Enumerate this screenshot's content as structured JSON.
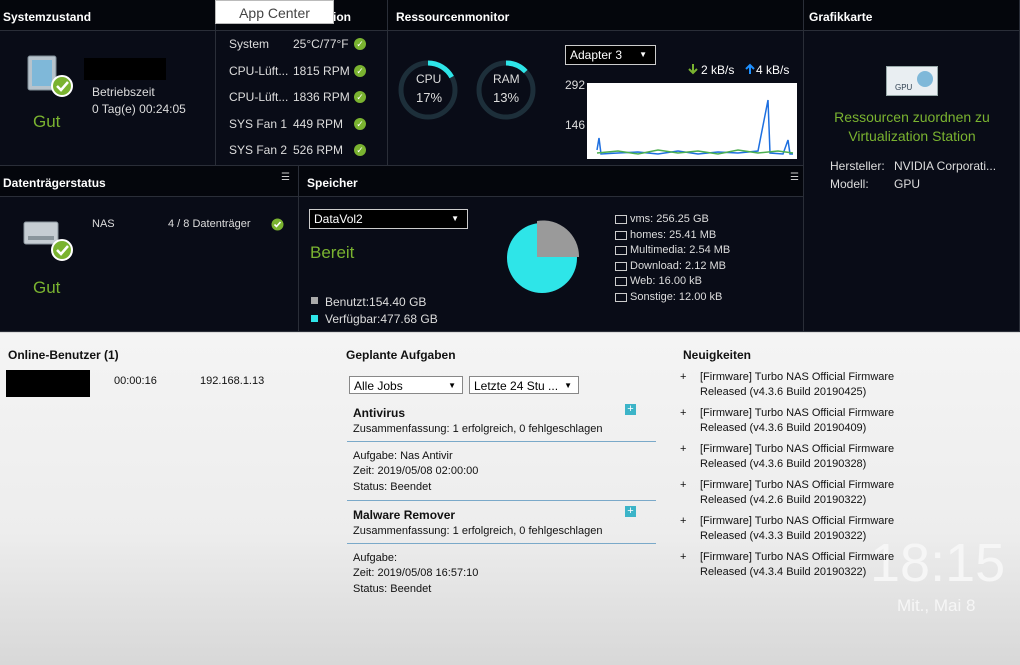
{
  "tooltip": "App Center",
  "system": {
    "title": "Systemzustand",
    "status": "Gut",
    "uptime_label": "Betriebszeit",
    "uptime": "0 Tag(e) 00:24:05"
  },
  "hardware": {
    "title": "ion",
    "rows": [
      [
        "System",
        "25°C/77°F"
      ],
      [
        "CPU-Lüft...",
        "1815 RPM"
      ],
      [
        "CPU-Lüft...",
        "1836 RPM"
      ],
      [
        "SYS Fan 1",
        "449 RPM"
      ],
      [
        "SYS Fan 2",
        "526 RPM"
      ]
    ]
  },
  "resources": {
    "title": "Ressourcenmonitor",
    "cpu": {
      "label": "CPU",
      "value": "17%"
    },
    "ram": {
      "label": "RAM",
      "value": "13%"
    },
    "adapter": "Adapter 3",
    "download": "2 kB/s",
    "upload": "4 kB/s",
    "axis": [
      "292",
      "146"
    ]
  },
  "gpu": {
    "title": "Grafikkarte",
    "icon": "GPU",
    "link": "Ressourcen zuordnen zu Virtualization Station",
    "vendor_label": "Hersteller:",
    "vendor": "NVIDIA Corporati...",
    "model_label": "Modell:",
    "model": "GPU"
  },
  "disks": {
    "title": "Datenträgerstatus",
    "status": "Gut",
    "name": "NAS",
    "count": "4 / 8 Datenträger"
  },
  "storage": {
    "title": "Speicher",
    "volume": "DataVol2",
    "state": "Bereit",
    "used": "Benutzt:154.40 GB",
    "free": "Verfügbar:477.68 GB",
    "folders": [
      "vms: 256.25 GB",
      "homes: 25.41 MB",
      "Multimedia: 2.54 MB",
      "Download: 2.12 MB",
      "Web: 16.00 kB",
      "Sonstige: 12.00 kB"
    ]
  },
  "users": {
    "title": "Online-Benutzer (1)",
    "rows": [
      [
        "00:00:16",
        "192.168.1.13"
      ]
    ]
  },
  "tasks": {
    "title": "Geplante Aufgaben",
    "filter": "Alle Jobs",
    "range": "Letzte 24 Stu ...",
    "items": [
      {
        "name": "Antivirus",
        "summary": "Zusammenfassung: 1 erfolgreich, 0 fehlgeschlagen",
        "task": "Aufgabe: Nas Antivir",
        "time": "Zeit: 2019/05/08 02:00:00",
        "status": "Status: Beendet"
      },
      {
        "name": "Malware Remover",
        "summary": "Zusammenfassung: 1 erfolgreich, 0 fehlgeschlagen",
        "task": "Aufgabe:",
        "time": "Zeit: 2019/05/08 16:57:10",
        "status": "Status: Beendet"
      }
    ]
  },
  "news": {
    "title": "Neuigkeiten",
    "items": [
      [
        "[Firmware] Turbo NAS Official Firmware",
        "Released (v4.3.6 Build 20190425)"
      ],
      [
        "[Firmware] Turbo NAS Official Firmware",
        "Released (v4.3.6 Build 20190409)"
      ],
      [
        "[Firmware] Turbo NAS Official Firmware",
        "Released (v4.3.6 Build 20190328)"
      ],
      [
        "[Firmware] Turbo NAS Official Firmware",
        "Released (v4.2.6 Build 20190322)"
      ],
      [
        "[Firmware] Turbo NAS Official Firmware",
        "Released (v4.3.3 Build 20190322)"
      ],
      [
        "[Firmware] Turbo NAS Official Firmware",
        "Released (v4.3.4 Build 20190322)"
      ]
    ]
  },
  "clock": {
    "time": "18:15",
    "date": "Mit., Mai 8"
  }
}
